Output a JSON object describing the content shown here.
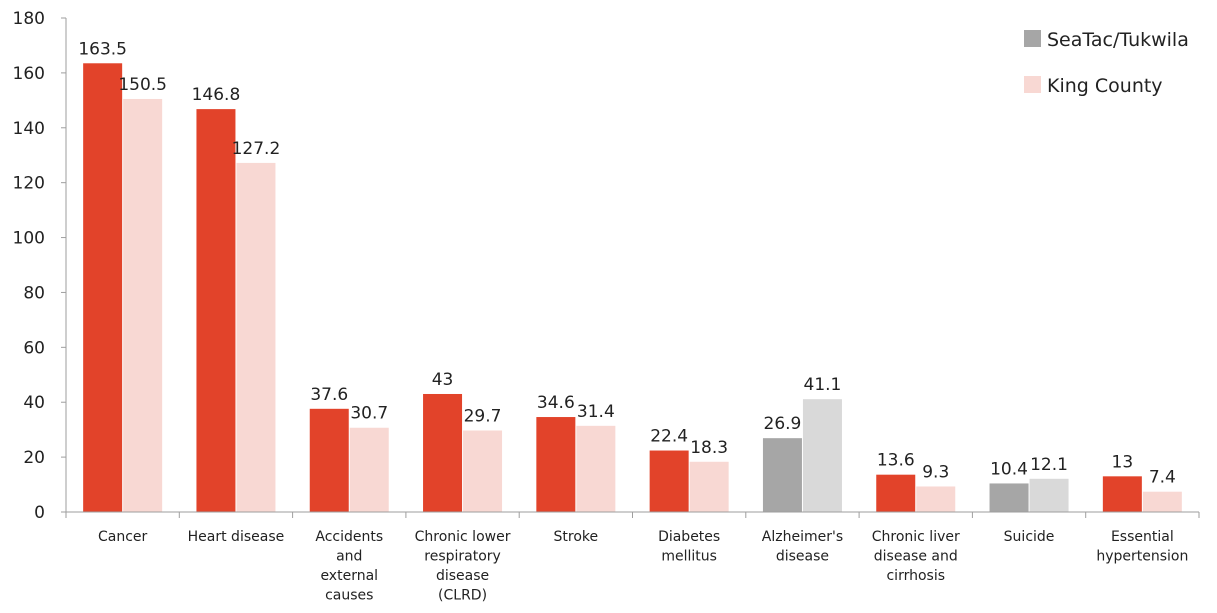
{
  "chart_data": {
    "type": "bar",
    "categories": [
      [
        "Cancer"
      ],
      [
        "Heart disease"
      ],
      [
        "Accidents",
        "and",
        "external",
        "causes"
      ],
      [
        "Chronic lower",
        "respiratory",
        "disease",
        "(CLRD)"
      ],
      [
        "Stroke"
      ],
      [
        "Diabetes",
        "mellitus"
      ],
      [
        "Alzheimer's",
        "disease"
      ],
      [
        "Chronic liver",
        "disease and",
        "cirrhosis"
      ],
      [
        "Suicide"
      ],
      [
        "Essential",
        "hypertension"
      ]
    ],
    "series": [
      {
        "name": "SeaTac/Tukwila",
        "values": [
          163.5,
          146.8,
          37.6,
          43,
          34.6,
          22.4,
          26.9,
          13.6,
          10.4,
          13
        ],
        "labels": [
          "163.5",
          "146.8",
          "37.6",
          "43",
          "34.6",
          "22.4",
          "26.9",
          "13.6",
          "10.4",
          "13"
        ],
        "colors": [
          "#e2432a",
          "#e2432a",
          "#e2432a",
          "#e2432a",
          "#e2432a",
          "#e2432a",
          "#a6a6a6",
          "#e2432a",
          "#a6a6a6",
          "#e2432a"
        ],
        "legend_color": "#a6a6a6"
      },
      {
        "name": "King County",
        "values": [
          150.5,
          127.2,
          30.7,
          29.7,
          31.4,
          18.3,
          41.1,
          9.3,
          12.1,
          7.4
        ],
        "labels": [
          "150.5",
          "127.2",
          "30.7",
          "29.7",
          "31.4",
          "18.3",
          "41.1",
          "9.3",
          "12.1",
          "7.4"
        ],
        "colors": [
          "#f8d8d3",
          "#f8d8d3",
          "#f8d8d3",
          "#f8d8d3",
          "#f8d8d3",
          "#f8d8d3",
          "#d9d9d9",
          "#f8d8d3",
          "#d9d9d9",
          "#f8d8d3"
        ],
        "legend_color": "#f8d8d3"
      }
    ],
    "ylim": [
      0,
      180
    ],
    "yticks": [
      "0",
      "20",
      "40",
      "60",
      "80",
      "100",
      "120",
      "140",
      "160",
      "180"
    ],
    "grid": false,
    "legend_position": "top-right",
    "axis_color": "#9e9e9e"
  }
}
